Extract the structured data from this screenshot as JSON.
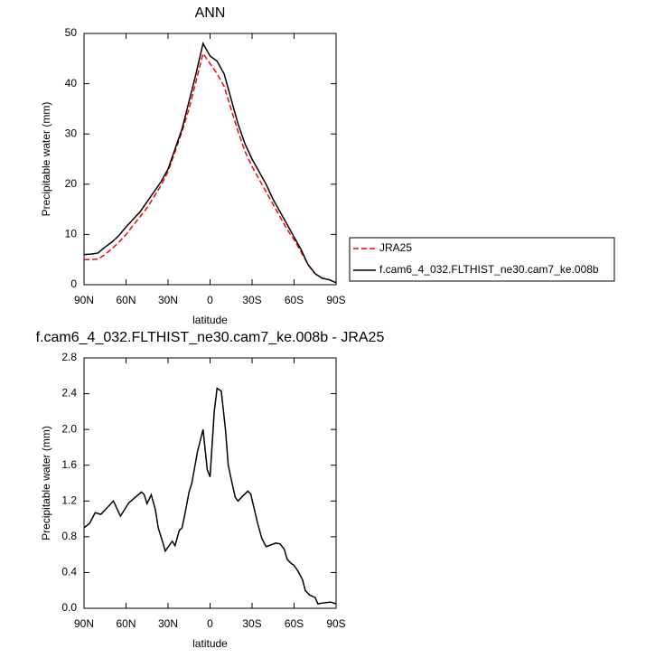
{
  "chart_data": [
    {
      "type": "line",
      "title": "ANN",
      "xlabel": "latitude",
      "ylabel": "Precipitable water (mm)",
      "x": [
        90,
        85,
        80,
        75,
        70,
        65,
        60,
        55,
        50,
        45,
        40,
        35,
        30,
        25,
        20,
        15,
        10,
        5,
        0,
        -5,
        -10,
        -15,
        -20,
        -25,
        -30,
        -35,
        -40,
        -45,
        -50,
        -55,
        -60,
        -65,
        -70,
        -75,
        -80,
        -85,
        -90
      ],
      "series": [
        {
          "name": "JRA25",
          "color": "#ff0000",
          "line_style": "dashed",
          "values": [
            5.0,
            5.0,
            5.1,
            6.0,
            7.2,
            8.5,
            10,
            11.8,
            13.5,
            15.3,
            17.5,
            19.8,
            22.5,
            26.5,
            30.5,
            35,
            40.5,
            46,
            44,
            42,
            39.5,
            35,
            30.5,
            26.5,
            23.5,
            21,
            18.5,
            16,
            13.5,
            11,
            9,
            6.5,
            4,
            2.2,
            1.3,
            1.0,
            0.4
          ]
        },
        {
          "name": "f.cam6_4_032.FLTHIST_ne30.cam7_ke.008b",
          "color": "#000000",
          "line_style": "solid",
          "values": [
            6.0,
            6.1,
            6.3,
            7.5,
            8.5,
            9.8,
            11.5,
            13,
            14.5,
            16.5,
            18.5,
            20.5,
            23,
            27,
            31,
            36.5,
            42,
            48,
            45.5,
            44.5,
            42,
            37,
            32,
            28,
            25,
            22.5,
            20,
            17,
            14.5,
            12,
            9.5,
            7,
            4,
            2.2,
            1.3,
            1.0,
            0.4
          ]
        }
      ],
      "xlim": [
        90,
        -90
      ],
      "xticks": [
        {
          "value": 90,
          "label": "90N"
        },
        {
          "value": 60,
          "label": "60N"
        },
        {
          "value": 30,
          "label": "30N"
        },
        0,
        {
          "value": -30,
          "label": "30S"
        },
        {
          "value": -60,
          "label": "60S"
        },
        {
          "value": -90,
          "label": "90S"
        }
      ],
      "ylim": [
        0,
        50
      ],
      "yticks": [
        0,
        10,
        20,
        30,
        40,
        50
      ],
      "legend": "right"
    },
    {
      "type": "line",
      "title": "f.cam6_4_032.FLTHIST_ne30.cam7_ke.008b - JRA25",
      "xlabel": "latitude",
      "ylabel": "Precipitable water (mm)",
      "x": [
        90,
        86,
        82,
        78,
        69,
        64,
        58,
        55,
        49,
        47,
        45,
        42,
        39,
        37,
        34,
        32,
        27,
        25,
        22,
        20,
        18,
        15,
        13,
        9,
        5,
        2,
        0,
        -3,
        -5,
        -8,
        -11,
        -13,
        -16,
        -18,
        -20,
        -23,
        -27,
        -29,
        -34,
        -37,
        -40,
        -42,
        -47,
        -50,
        -53,
        -55,
        -58,
        -60,
        -63,
        -66,
        -68,
        -71,
        -75,
        -77,
        -81,
        -86,
        -90
      ],
      "series": [
        {
          "name": "f.cam6_4_032.FLTHIST_ne30.cam7_ke.008b - JRA25",
          "color": "#000000",
          "line_style": "solid",
          "values": [
            0.9,
            0.95,
            1.07,
            1.05,
            1.2,
            1.03,
            1.18,
            1.22,
            1.3,
            1.27,
            1.17,
            1.27,
            1.1,
            0.9,
            0.75,
            0.64,
            0.75,
            0.7,
            0.87,
            0.9,
            1.05,
            1.3,
            1.4,
            1.75,
            2.0,
            1.55,
            1.47,
            2.2,
            2.46,
            2.43,
            2.0,
            1.6,
            1.38,
            1.24,
            1.2,
            1.25,
            1.31,
            1.28,
            0.95,
            0.78,
            0.69,
            0.7,
            0.73,
            0.72,
            0.66,
            0.55,
            0.5,
            0.48,
            0.41,
            0.32,
            0.2,
            0.15,
            0.12,
            0.05,
            0.06,
            0.07,
            0.05
          ]
        }
      ],
      "xlim": [
        90,
        -90
      ],
      "xticks": [
        {
          "value": 90,
          "label": "90N"
        },
        {
          "value": 60,
          "label": "60N"
        },
        {
          "value": 30,
          "label": "30N"
        },
        0,
        {
          "value": -30,
          "label": "30S"
        },
        {
          "value": -60,
          "label": "60S"
        },
        {
          "value": -90,
          "label": "90S"
        }
      ],
      "ylim": [
        0,
        2.8
      ],
      "yticks": [
        {
          "value": 0,
          "label": "0.0"
        },
        0.4,
        0.8,
        1.2,
        1.6,
        {
          "value": 2,
          "label": "2.0"
        },
        2.4,
        2.8
      ]
    }
  ]
}
